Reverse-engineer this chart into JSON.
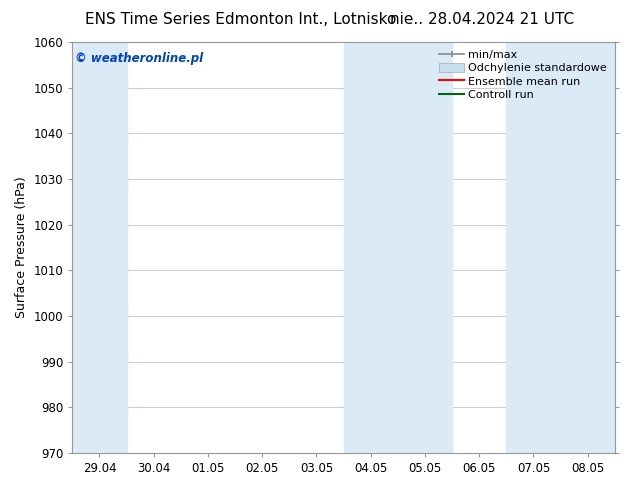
{
  "title_left": "ENS Time Series Edmonton Int., Lotnisko",
  "title_right": "nie.. 28.04.2024 21 UTC",
  "ylabel": "Surface Pressure (hPa)",
  "ylim": [
    970,
    1060
  ],
  "yticks": [
    970,
    980,
    990,
    1000,
    1010,
    1020,
    1030,
    1040,
    1050,
    1060
  ],
  "xtick_labels": [
    "29.04",
    "30.04",
    "01.05",
    "02.05",
    "03.05",
    "04.05",
    "05.05",
    "06.05",
    "07.05",
    "08.05"
  ],
  "num_xticks": 10,
  "shaded_x_indices": [
    0,
    5,
    6,
    8,
    9
  ],
  "shade_color": "#daeaf7",
  "watermark_text": "© weatheronline.pl",
  "watermark_color": "#0044bb",
  "bg_color": "#ffffff",
  "grid_color": "#cccccc",
  "border_color": "#999999",
  "title_fontsize": 11,
  "ylabel_fontsize": 9,
  "tick_fontsize": 8.5,
  "watermark_fontsize": 8.5,
  "legend_fontsize": 8
}
